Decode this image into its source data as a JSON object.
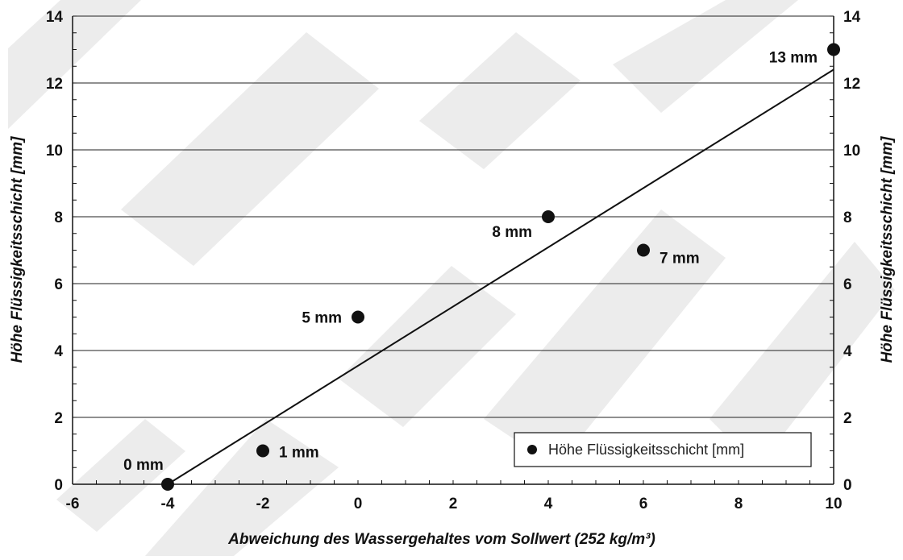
{
  "chart_data": {
    "type": "scatter",
    "xlabel": "Abweichung des Wassergehaltes vom Sollwert (252 kg/m³)",
    "ylabel": "Höhe Flüssigkeitsschicht [mm]",
    "ylabel_right": "Höhe Flüssigkeitsschicht [mm]",
    "xlim": [
      -6,
      10
    ],
    "ylim": [
      0,
      14
    ],
    "x_ticks": [
      -6,
      -4,
      -2,
      0,
      2,
      4,
      6,
      8,
      10
    ],
    "y_ticks": [
      0,
      2,
      4,
      6,
      8,
      10,
      12,
      14
    ],
    "grid": "horizontal",
    "legend_position": "bottom-right",
    "series": [
      {
        "name": "Höhe Flüssigkeitsschicht [mm]",
        "marker": "circle",
        "color": "#111111",
        "points": [
          {
            "x": -4,
            "y": 0,
            "label": "0 mm"
          },
          {
            "x": -2,
            "y": 1,
            "label": "1 mm"
          },
          {
            "x": 0,
            "y": 5,
            "label": "5 mm"
          },
          {
            "x": 4,
            "y": 8,
            "label": "8 mm"
          },
          {
            "x": 6,
            "y": 7,
            "label": "7 mm"
          },
          {
            "x": 10,
            "y": 13,
            "label": "13 mm"
          }
        ]
      }
    ],
    "trendline": {
      "type": "linear",
      "color": "#111111",
      "from": {
        "x": -4,
        "y": 0
      },
      "to": {
        "x": 10,
        "y": 12.4
      }
    }
  }
}
